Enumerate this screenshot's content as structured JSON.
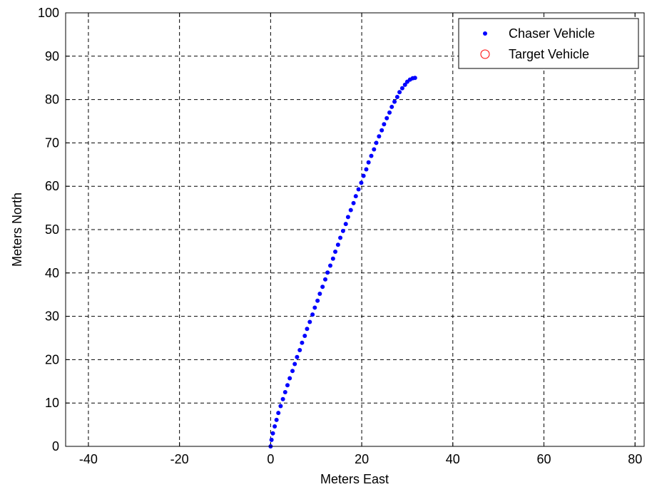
{
  "chart_data": {
    "type": "scatter",
    "title": "",
    "xlabel": "Meters East",
    "ylabel": "Meters North",
    "xlim": [
      -45,
      82
    ],
    "ylim": [
      0,
      100
    ],
    "xticks": [
      -40,
      -20,
      0,
      20,
      40,
      60,
      80
    ],
    "yticks": [
      0,
      10,
      20,
      30,
      40,
      50,
      60,
      70,
      80,
      90,
      100
    ],
    "grid": true,
    "legend_position": "top-right",
    "series": [
      {
        "name": "Chaser Vehicle",
        "marker": "dot",
        "color": "#0000ff",
        "points": [
          [
            0.0,
            0.0
          ],
          [
            0.2,
            1.5
          ],
          [
            0.5,
            3.0
          ],
          [
            0.9,
            4.6
          ],
          [
            1.3,
            6.1
          ],
          [
            1.7,
            7.7
          ],
          [
            2.2,
            9.3
          ],
          [
            2.7,
            10.9
          ],
          [
            3.2,
            12.5
          ],
          [
            3.7,
            14.1
          ],
          [
            4.2,
            15.7
          ],
          [
            4.8,
            17.4
          ],
          [
            5.3,
            19.0
          ],
          [
            5.8,
            20.6
          ],
          [
            6.4,
            22.2
          ],
          [
            6.9,
            23.9
          ],
          [
            7.5,
            25.5
          ],
          [
            8.0,
            27.1
          ],
          [
            8.6,
            28.7
          ],
          [
            9.2,
            30.4
          ],
          [
            9.7,
            32.0
          ],
          [
            10.3,
            33.6
          ],
          [
            10.8,
            35.2
          ],
          [
            11.4,
            36.8
          ],
          [
            12.0,
            38.5
          ],
          [
            12.5,
            40.1
          ],
          [
            13.1,
            41.7
          ],
          [
            13.7,
            43.3
          ],
          [
            14.2,
            44.9
          ],
          [
            14.8,
            46.5
          ],
          [
            15.3,
            48.1
          ],
          [
            15.9,
            49.7
          ],
          [
            16.5,
            51.3
          ],
          [
            17.0,
            52.9
          ],
          [
            17.6,
            54.5
          ],
          [
            18.2,
            56.1
          ],
          [
            18.7,
            57.7
          ],
          [
            19.3,
            59.3
          ],
          [
            19.9,
            60.8
          ],
          [
            20.4,
            62.4
          ],
          [
            21.0,
            63.9
          ],
          [
            21.5,
            65.5
          ],
          [
            22.1,
            67.0
          ],
          [
            22.7,
            68.5
          ],
          [
            23.2,
            70.0
          ],
          [
            23.8,
            71.5
          ],
          [
            24.4,
            72.9
          ],
          [
            24.9,
            74.3
          ],
          [
            25.5,
            75.7
          ],
          [
            26.1,
            77.0
          ],
          [
            26.6,
            78.3
          ],
          [
            27.2,
            79.5
          ],
          [
            27.8,
            80.6
          ],
          [
            28.3,
            81.7
          ],
          [
            28.9,
            82.6
          ],
          [
            29.5,
            83.4
          ],
          [
            30.0,
            84.1
          ],
          [
            30.6,
            84.6
          ],
          [
            31.2,
            84.9
          ],
          [
            31.7,
            85.0
          ]
        ]
      },
      {
        "name": "Target Vehicle",
        "marker": "circle",
        "color": "#ff0000",
        "points": []
      }
    ]
  }
}
